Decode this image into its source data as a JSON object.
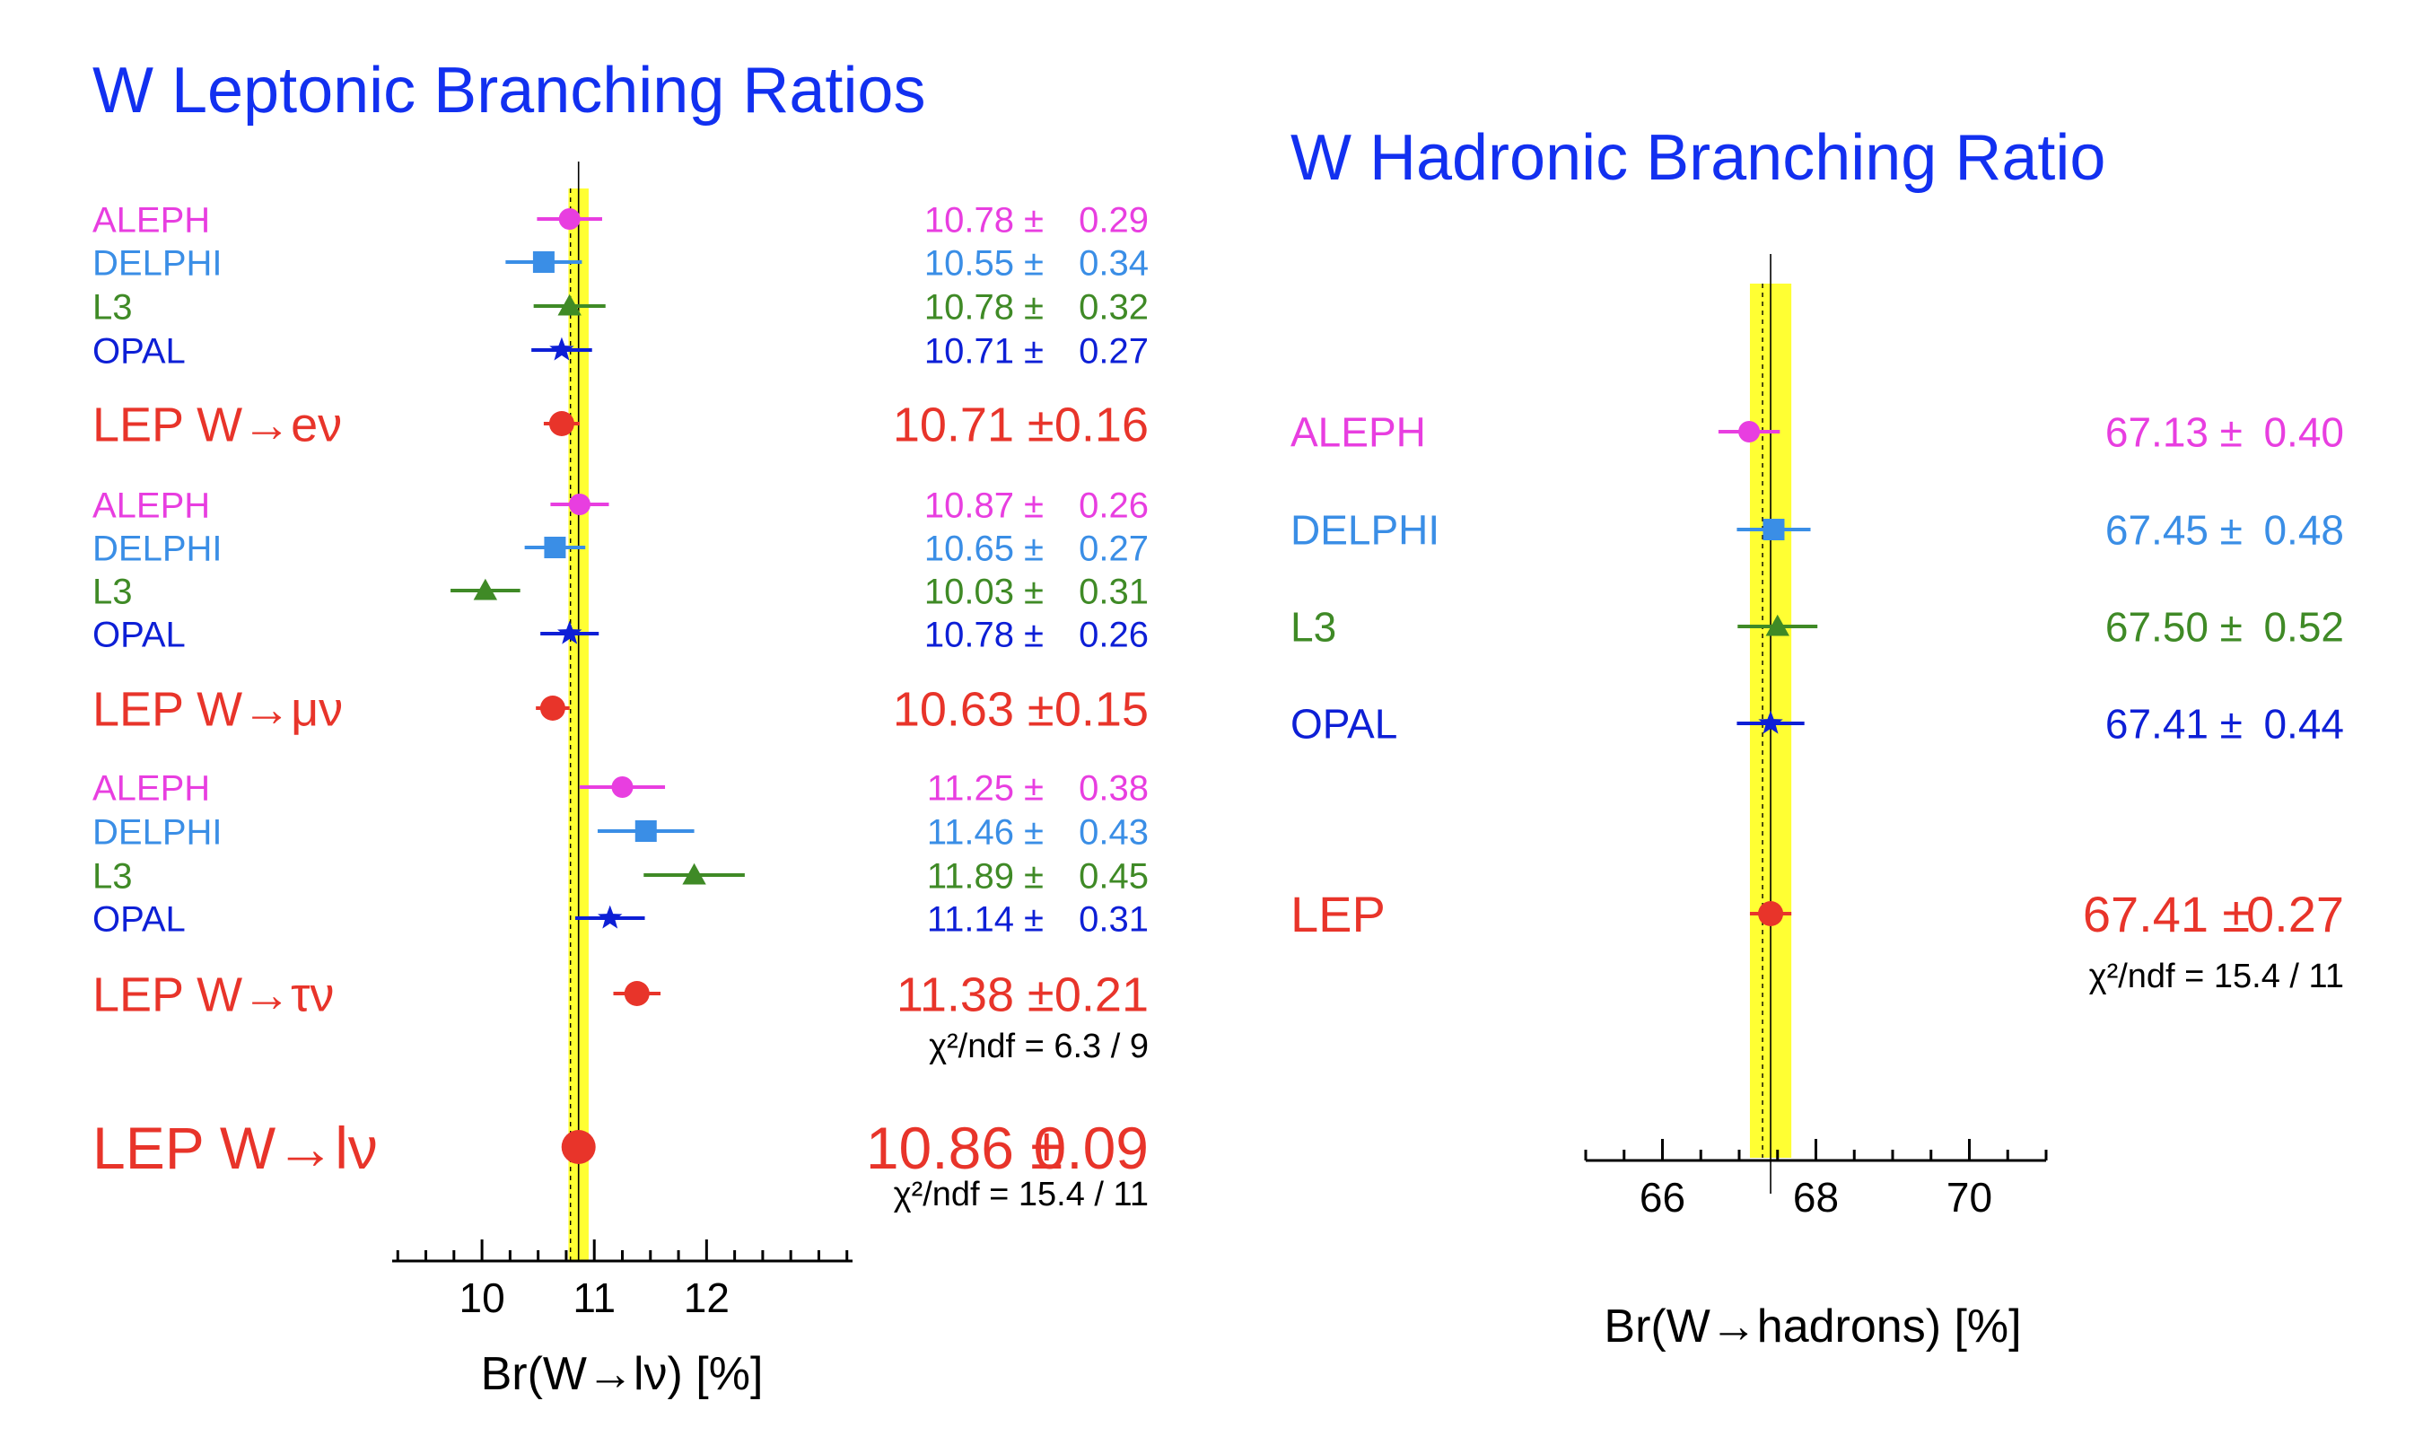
{
  "colors": {
    "aleph": "#e83ee0",
    "delphi": "#3a8ee6",
    "l3": "#3f8a26",
    "opal": "#0d1fd6",
    "lep": "#e8342a",
    "title": "#1230f0",
    "band": "#ffff33",
    "axis": "#000000"
  },
  "chart_data": [
    {
      "type": "scatter",
      "title": "W Leptonic Branching Ratios",
      "xlabel": "Br(W→lν) [%]",
      "xlim": [
        9.2,
        13.3
      ],
      "x_ticks": [
        10,
        11,
        12
      ],
      "x_tick_labels": [
        "10",
        "11",
        "12"
      ],
      "average": {
        "value": 10.86,
        "error": 0.09
      },
      "rows": [
        {
          "label": "ALEPH",
          "value": 10.78,
          "error": 0.29,
          "value_text": "10.78",
          "error_text": "0.29",
          "marker": "circle",
          "color_key": "aleph",
          "size": "small"
        },
        {
          "label": "DELPHI",
          "value": 10.55,
          "error": 0.34,
          "value_text": "10.55",
          "error_text": "0.34",
          "marker": "square",
          "color_key": "delphi",
          "size": "small"
        },
        {
          "label": "L3",
          "value": 10.78,
          "error": 0.32,
          "value_text": "10.78",
          "error_text": "0.32",
          "marker": "triangle",
          "color_key": "l3",
          "size": "small"
        },
        {
          "label": "OPAL",
          "value": 10.71,
          "error": 0.27,
          "value_text": "10.71",
          "error_text": "0.27",
          "marker": "star",
          "color_key": "opal",
          "size": "small"
        },
        {
          "label": "LEP W→eν",
          "value": 10.71,
          "error": 0.16,
          "value_text": "10.71",
          "error_text": "0.16",
          "marker": "circle",
          "color_key": "lep",
          "size": "big"
        },
        {
          "label": "ALEPH",
          "value": 10.87,
          "error": 0.26,
          "value_text": "10.87",
          "error_text": "0.26",
          "marker": "circle",
          "color_key": "aleph",
          "size": "small"
        },
        {
          "label": "DELPHI",
          "value": 10.65,
          "error": 0.27,
          "value_text": "10.65",
          "error_text": "0.27",
          "marker": "square",
          "color_key": "delphi",
          "size": "small"
        },
        {
          "label": "L3",
          "value": 10.03,
          "error": 0.31,
          "value_text": "10.03",
          "error_text": "0.31",
          "marker": "triangle",
          "color_key": "l3",
          "size": "small"
        },
        {
          "label": "OPAL",
          "value": 10.78,
          "error": 0.26,
          "value_text": "10.78",
          "error_text": "0.26",
          "marker": "star",
          "color_key": "opal",
          "size": "small"
        },
        {
          "label": "LEP W→μν",
          "value": 10.63,
          "error": 0.15,
          "value_text": "10.63",
          "error_text": "0.15",
          "marker": "circle",
          "color_key": "lep",
          "size": "big"
        },
        {
          "label": "ALEPH",
          "value": 11.25,
          "error": 0.38,
          "value_text": "11.25",
          "error_text": "0.38",
          "marker": "circle",
          "color_key": "aleph",
          "size": "small"
        },
        {
          "label": "DELPHI",
          "value": 11.46,
          "error": 0.43,
          "value_text": "11.46",
          "error_text": "0.43",
          "marker": "square",
          "color_key": "delphi",
          "size": "small"
        },
        {
          "label": "L3",
          "value": 11.89,
          "error": 0.45,
          "value_text": "11.89",
          "error_text": "0.45",
          "marker": "triangle",
          "color_key": "l3",
          "size": "small"
        },
        {
          "label": "OPAL",
          "value": 11.14,
          "error": 0.31,
          "value_text": "11.14",
          "error_text": "0.31",
          "marker": "star",
          "color_key": "opal",
          "size": "small"
        },
        {
          "label": "LEP W→τν",
          "value": 11.38,
          "error": 0.21,
          "value_text": "11.38",
          "error_text": "0.21",
          "marker": "circle",
          "color_key": "lep",
          "size": "big"
        },
        {
          "label": "LEP W→lν",
          "value": 10.86,
          "error": 0.09,
          "value_text": "10.86",
          "error_text": "0.09",
          "marker": "circle",
          "color_key": "lep",
          "size": "huge"
        }
      ],
      "annotations": [
        {
          "text": "χ²/ndf = 6.3 / 9",
          "after_row": 14
        },
        {
          "text": "χ²/ndf = 15.4 / 11",
          "after_row": 15
        }
      ]
    },
    {
      "type": "scatter",
      "title": "W Hadronic Branching Ratio",
      "xlabel": "Br(W→hadrons) [%]",
      "xlim": [
        65,
        71
      ],
      "x_ticks": [
        66,
        68,
        70
      ],
      "x_tick_labels": [
        "66",
        "68",
        "70"
      ],
      "average": {
        "value": 67.41,
        "error": 0.27
      },
      "rows": [
        {
          "label": "ALEPH",
          "value": 67.13,
          "error": 0.4,
          "value_text": "67.13",
          "error_text": "0.40",
          "marker": "circle",
          "color_key": "aleph",
          "size": "small"
        },
        {
          "label": "DELPHI",
          "value": 67.45,
          "error": 0.48,
          "value_text": "67.45",
          "error_text": "0.48",
          "marker": "square",
          "color_key": "delphi",
          "size": "small"
        },
        {
          "label": "L3",
          "value": 67.5,
          "error": 0.52,
          "value_text": "67.50",
          "error_text": "0.52",
          "marker": "triangle",
          "color_key": "l3",
          "size": "small"
        },
        {
          "label": "OPAL",
          "value": 67.41,
          "error": 0.44,
          "value_text": "67.41",
          "error_text": "0.44",
          "marker": "star",
          "color_key": "opal",
          "size": "small"
        },
        {
          "label": "LEP",
          "value": 67.41,
          "error": 0.27,
          "value_text": "67.41",
          "error_text": "0.27",
          "marker": "circle",
          "color_key": "lep",
          "size": "big"
        }
      ],
      "annotations": [
        {
          "text": "χ²/ndf = 15.4 / 11",
          "after_row": 4
        }
      ]
    }
  ]
}
